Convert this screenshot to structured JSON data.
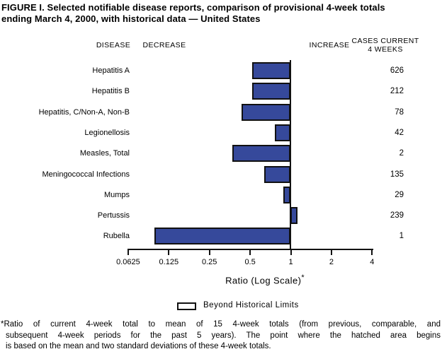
{
  "title": {
    "line1": "FIGURE I. Selected notifiable disease reports, comparison of provisional 4-week totals",
    "line2": "ending March 4, 2000, with historical data — United States"
  },
  "column_headers": {
    "disease": "DISEASE",
    "decrease": "DECREASE",
    "increase": "INCREASE",
    "cases_line1": "CASES CURRENT",
    "cases_line2": "4 WEEKS"
  },
  "chart_data": {
    "type": "bar",
    "orientation": "horizontal",
    "x_scale": "log2",
    "baseline_ratio": 1,
    "x_axis_label": "Ratio (Log Scale)",
    "x_axis_label_superscript": "*",
    "x_tick_values": [
      0.0625,
      0.125,
      0.25,
      0.5,
      1,
      2,
      4
    ],
    "x_tick_labels": [
      "0.0625",
      "0.125",
      "0.25",
      "0.5",
      "1",
      "2",
      "4"
    ],
    "xlim": [
      0.0625,
      4
    ],
    "bar_fill_color": "#36499B",
    "bar_border_color": "#111111",
    "rows": [
      {
        "disease": "Hepatitis A",
        "ratio": 0.53,
        "cases_current_4_weeks": "626"
      },
      {
        "disease": "Hepatitis B",
        "ratio": 0.53,
        "cases_current_4_weeks": "212"
      },
      {
        "disease": "Hepatitis, C/Non-A, Non-B",
        "ratio": 0.44,
        "cases_current_4_weeks": "78"
      },
      {
        "disease": "Legionellosis",
        "ratio": 0.78,
        "cases_current_4_weeks": "42"
      },
      {
        "disease": "Measles, Total",
        "ratio": 0.38,
        "cases_current_4_weeks": "2"
      },
      {
        "disease": "Meningococcal Infections",
        "ratio": 0.65,
        "cases_current_4_weeks": "135"
      },
      {
        "disease": "Mumps",
        "ratio": 0.9,
        "cases_current_4_weeks": "29"
      },
      {
        "disease": "Pertussis",
        "ratio": 1.09,
        "cases_current_4_weeks": "239"
      },
      {
        "disease": "Rubella",
        "ratio": 0.1,
        "cases_current_4_weeks": "1"
      }
    ]
  },
  "legend": {
    "swatch": "empty-box-beyond-historical-limits",
    "label": "Beyond Historical Limits"
  },
  "footnote": {
    "lines": [
      "*Ratio of current 4-week total to mean of 15 4-week totals (from previous, comparable, and",
      "subsequent 4-week periods for the past 5 years). The point where the hatched area begins",
      "is based on the mean and two standard deviations of these 4-week totals."
    ]
  }
}
